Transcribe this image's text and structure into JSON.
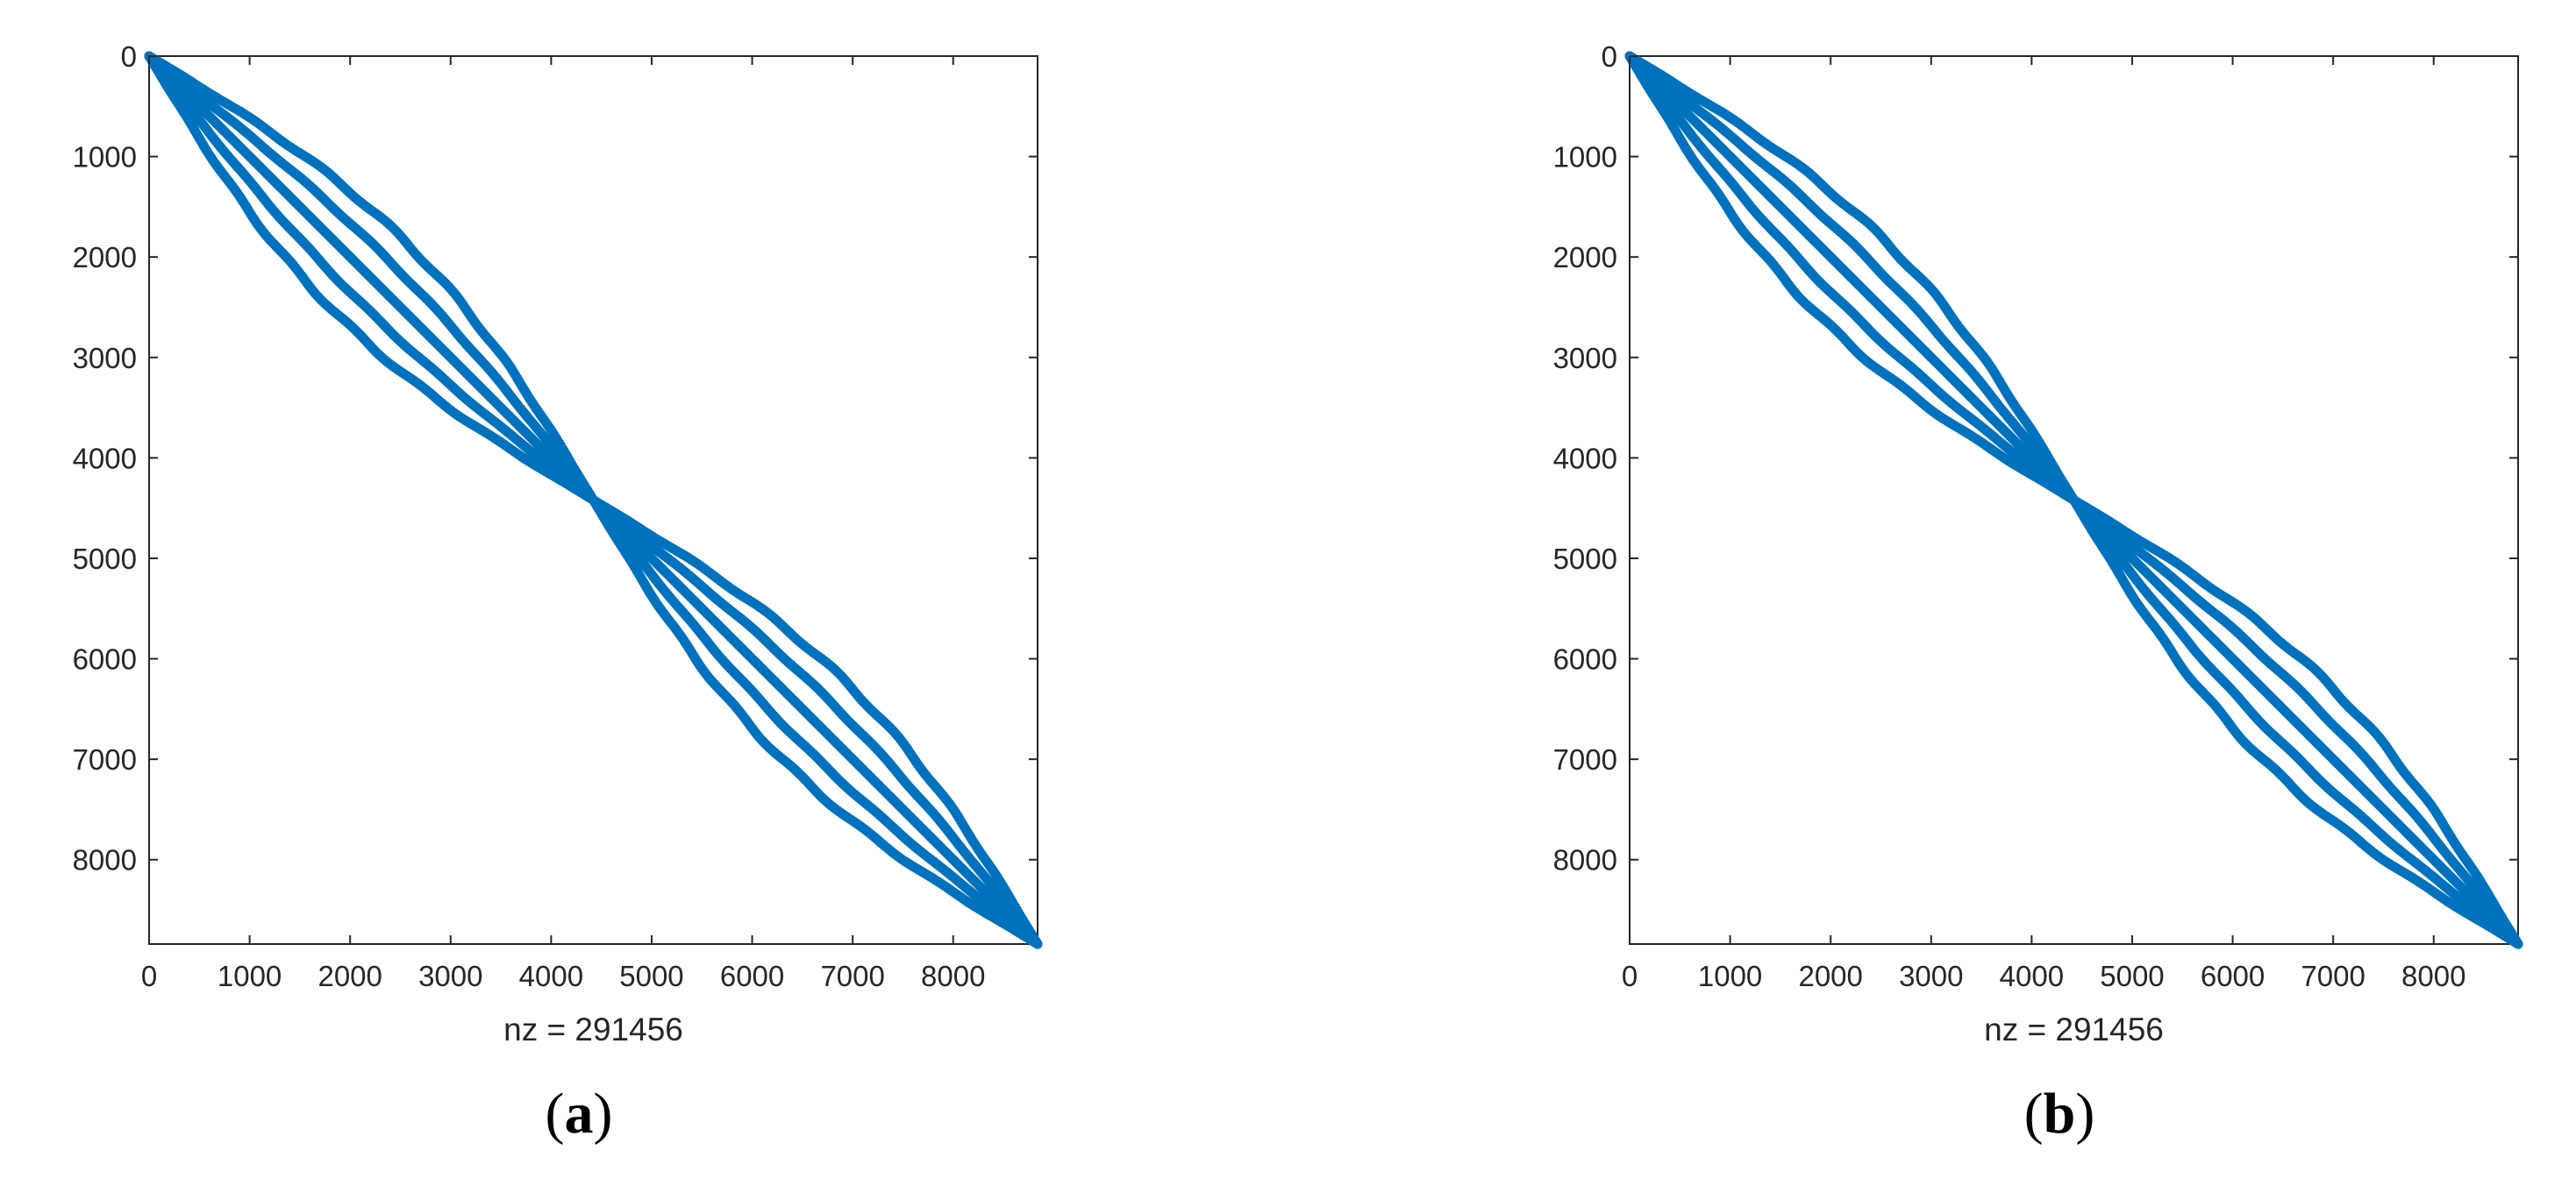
{
  "chart_data": [
    {
      "type": "scatter",
      "panel_label": "a",
      "xlabel": "nz = 291456",
      "xlim": [
        0,
        8840
      ],
      "ylim": [
        0,
        8840
      ],
      "y_reversed": true,
      "xticks": [
        0,
        1000,
        2000,
        3000,
        4000,
        5000,
        6000,
        7000,
        8000
      ],
      "yticks": [
        0,
        1000,
        2000,
        3000,
        4000,
        5000,
        6000,
        7000,
        8000
      ],
      "grid": false,
      "marker_color": "#0072BD",
      "description": "sparsity pattern: two diagonal blocks of 5 bands each",
      "blocks": [
        {
          "start": 0,
          "end": 4420,
          "band_offsets": [
            -700,
            -350,
            0,
            350,
            700
          ]
        },
        {
          "start": 4420,
          "end": 8840,
          "band_offsets": [
            -700,
            -350,
            0,
            350,
            700
          ]
        }
      ]
    },
    {
      "type": "scatter",
      "panel_label": "b",
      "xlabel": "nz = 291456",
      "xlim": [
        0,
        8840
      ],
      "ylim": [
        0,
        8840
      ],
      "y_reversed": true,
      "xticks": [
        0,
        1000,
        2000,
        3000,
        4000,
        5000,
        6000,
        7000,
        8000
      ],
      "yticks": [
        0,
        1000,
        2000,
        3000,
        4000,
        5000,
        6000,
        7000,
        8000
      ],
      "grid": false,
      "marker_color": "#0072BD",
      "description": "sparsity pattern: two diagonal blocks of 5 bands each",
      "blocks": [
        {
          "start": 0,
          "end": 4420,
          "band_offsets": [
            -700,
            -350,
            0,
            350,
            700
          ]
        },
        {
          "start": 4420,
          "end": 8840,
          "band_offsets": [
            -700,
            -350,
            0,
            350,
            700
          ]
        }
      ]
    }
  ]
}
